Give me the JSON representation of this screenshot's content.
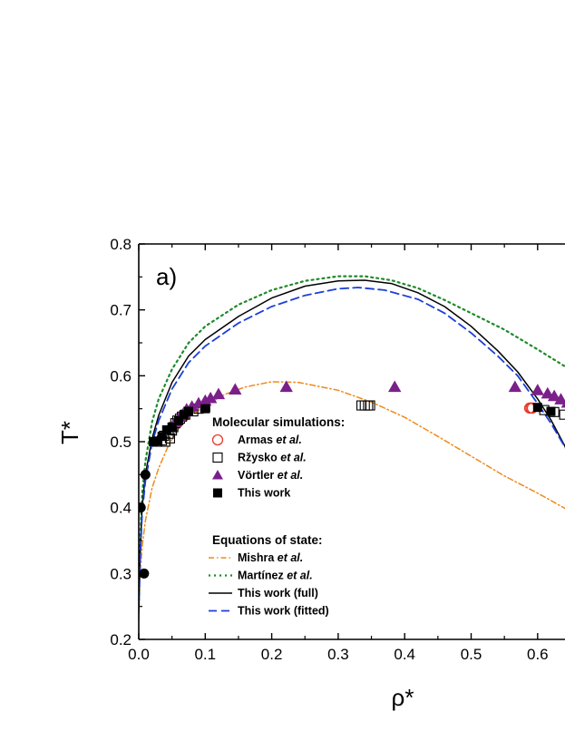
{
  "chart_data": {
    "type": "scatter",
    "panel_label": "a)",
    "xlabel": "ρ*",
    "ylabel": "T*",
    "xlim": [
      0.0,
      0.648
    ],
    "ylim": [
      0.2,
      0.8
    ],
    "xticks": [
      "0.0",
      "0.1",
      "0.2",
      "0.3",
      "0.4",
      "0.5",
      "0.6"
    ],
    "yticks": [
      "0.2",
      "0.3",
      "0.4",
      "0.5",
      "0.6",
      "0.7",
      "0.8"
    ],
    "legend": {
      "placement": "center-left",
      "sim_header": "Molecular simulations:",
      "eos_header": "Equations of state:"
    },
    "series": [
      {
        "name": "Armas et al.",
        "label_plain": "Armas ",
        "label_italic": "et al.",
        "kind": "marker",
        "marker": "open-circle",
        "color": "#e8392a",
        "points": [
          [
            0.588,
            0.551
          ],
          [
            0.59,
            0.551
          ],
          [
            0.592,
            0.551
          ]
        ]
      },
      {
        "name": "Ržysko et al.",
        "label_plain": "Ržysko ",
        "label_italic": "et al.",
        "kind": "marker",
        "marker": "open-square",
        "color": "#000000",
        "points": [
          [
            0.028,
            0.5
          ],
          [
            0.035,
            0.502
          ],
          [
            0.038,
            0.509
          ],
          [
            0.04,
            0.5
          ],
          [
            0.045,
            0.512
          ],
          [
            0.047,
            0.505
          ],
          [
            0.05,
            0.517
          ],
          [
            0.052,
            0.522
          ],
          [
            0.055,
            0.528
          ],
          [
            0.058,
            0.532
          ],
          [
            0.062,
            0.535
          ],
          [
            0.065,
            0.538
          ],
          [
            0.07,
            0.541
          ],
          [
            0.082,
            0.546
          ],
          [
            0.09,
            0.55
          ],
          [
            0.1,
            0.552
          ],
          [
            0.335,
            0.555
          ],
          [
            0.34,
            0.555
          ],
          [
            0.345,
            0.555
          ],
          [
            0.348,
            0.555
          ],
          [
            0.61,
            0.548
          ],
          [
            0.625,
            0.545
          ],
          [
            0.64,
            0.541
          ]
        ]
      },
      {
        "name": "Vörtler et al.",
        "label_plain": "Vörtler ",
        "label_italic": "et al.",
        "kind": "marker",
        "marker": "filled-triangle",
        "color": "#7b1f8a",
        "points": [
          [
            0.055,
            0.53
          ],
          [
            0.062,
            0.538
          ],
          [
            0.068,
            0.544
          ],
          [
            0.072,
            0.549
          ],
          [
            0.08,
            0.553
          ],
          [
            0.09,
            0.558
          ],
          [
            0.1,
            0.562
          ],
          [
            0.108,
            0.566
          ],
          [
            0.12,
            0.572
          ],
          [
            0.145,
            0.579
          ],
          [
            0.222,
            0.583
          ],
          [
            0.385,
            0.583
          ],
          [
            0.566,
            0.583
          ],
          [
            0.6,
            0.578
          ],
          [
            0.615,
            0.573
          ],
          [
            0.625,
            0.569
          ],
          [
            0.635,
            0.564
          ],
          [
            0.645,
            0.559
          ]
        ]
      },
      {
        "name": "This work",
        "label_plain": "This work",
        "label_italic": "",
        "kind": "marker",
        "marker": "filled-square",
        "color": "#000000",
        "points": [
          [
            0.022,
            0.5
          ],
          [
            0.028,
            0.501
          ],
          [
            0.035,
            0.508
          ],
          [
            0.042,
            0.518
          ],
          [
            0.05,
            0.522
          ],
          [
            0.06,
            0.532
          ],
          [
            0.068,
            0.541
          ],
          [
            0.075,
            0.546
          ],
          [
            0.1,
            0.55
          ],
          [
            0.6,
            0.552
          ],
          [
            0.62,
            0.546
          ]
        ]
      },
      {
        "name": "Black circles",
        "kind": "marker",
        "legend": false,
        "marker": "filled-circle",
        "color": "#000000",
        "points": [
          [
            0.003,
            0.4
          ],
          [
            0.01,
            0.45
          ],
          [
            0.008,
            0.3
          ]
        ]
      },
      {
        "name": "Mishra et al.",
        "label_plain": "Mishra ",
        "label_italic": "et al.",
        "kind": "line",
        "style": "dash-dot",
        "color": "#ef8a1c",
        "points": [
          [
            0.0,
            0.23
          ],
          [
            0.002,
            0.3
          ],
          [
            0.005,
            0.34
          ],
          [
            0.01,
            0.38
          ],
          [
            0.02,
            0.43
          ],
          [
            0.03,
            0.46
          ],
          [
            0.045,
            0.495
          ],
          [
            0.06,
            0.52
          ],
          [
            0.08,
            0.54
          ],
          [
            0.1,
            0.555
          ],
          [
            0.13,
            0.572
          ],
          [
            0.16,
            0.583
          ],
          [
            0.2,
            0.591
          ],
          [
            0.24,
            0.59
          ],
          [
            0.3,
            0.578
          ],
          [
            0.35,
            0.56
          ],
          [
            0.4,
            0.537
          ],
          [
            0.45,
            0.508
          ],
          [
            0.5,
            0.478
          ],
          [
            0.55,
            0.448
          ],
          [
            0.6,
            0.422
          ],
          [
            0.648,
            0.395
          ]
        ]
      },
      {
        "name": "Martínez et al.",
        "label_plain": "Martínez ",
        "label_italic": "et al.",
        "kind": "line",
        "style": "dotted",
        "color": "#1f8a2a",
        "points": [
          [
            0.0,
            0.25
          ],
          [
            0.002,
            0.35
          ],
          [
            0.005,
            0.42
          ],
          [
            0.01,
            0.47
          ],
          [
            0.02,
            0.53
          ],
          [
            0.03,
            0.565
          ],
          [
            0.05,
            0.61
          ],
          [
            0.075,
            0.65
          ],
          [
            0.1,
            0.675
          ],
          [
            0.15,
            0.708
          ],
          [
            0.2,
            0.73
          ],
          [
            0.25,
            0.744
          ],
          [
            0.3,
            0.751
          ],
          [
            0.34,
            0.751
          ],
          [
            0.38,
            0.745
          ],
          [
            0.42,
            0.733
          ],
          [
            0.46,
            0.715
          ],
          [
            0.5,
            0.695
          ],
          [
            0.55,
            0.67
          ],
          [
            0.6,
            0.64
          ],
          [
            0.648,
            0.61
          ]
        ]
      },
      {
        "name": "This work (full)",
        "label_plain": "This work (full)",
        "label_italic": "",
        "kind": "line",
        "style": "solid",
        "color": "#000000",
        "points": [
          [
            0.0,
            0.25
          ],
          [
            0.002,
            0.33
          ],
          [
            0.005,
            0.4
          ],
          [
            0.01,
            0.45
          ],
          [
            0.02,
            0.505
          ],
          [
            0.03,
            0.54
          ],
          [
            0.05,
            0.59
          ],
          [
            0.075,
            0.63
          ],
          [
            0.1,
            0.655
          ],
          [
            0.15,
            0.69
          ],
          [
            0.2,
            0.718
          ],
          [
            0.25,
            0.736
          ],
          [
            0.3,
            0.744
          ],
          [
            0.34,
            0.745
          ],
          [
            0.38,
            0.74
          ],
          [
            0.42,
            0.726
          ],
          [
            0.46,
            0.705
          ],
          [
            0.5,
            0.675
          ],
          [
            0.54,
            0.638
          ],
          [
            0.57,
            0.606
          ],
          [
            0.6,
            0.565
          ],
          [
            0.62,
            0.533
          ],
          [
            0.648,
            0.48
          ]
        ]
      },
      {
        "name": "This work (fitted)",
        "label_plain": "This work (fitted)",
        "label_italic": "",
        "kind": "line",
        "style": "dashed",
        "color": "#1c3fd6",
        "points": [
          [
            0.0,
            0.24
          ],
          [
            0.002,
            0.32
          ],
          [
            0.005,
            0.39
          ],
          [
            0.01,
            0.44
          ],
          [
            0.02,
            0.498
          ],
          [
            0.03,
            0.532
          ],
          [
            0.05,
            0.58
          ],
          [
            0.075,
            0.62
          ],
          [
            0.1,
            0.645
          ],
          [
            0.15,
            0.68
          ],
          [
            0.2,
            0.705
          ],
          [
            0.25,
            0.722
          ],
          [
            0.3,
            0.732
          ],
          [
            0.33,
            0.734
          ],
          [
            0.37,
            0.73
          ],
          [
            0.42,
            0.716
          ],
          [
            0.46,
            0.695
          ],
          [
            0.5,
            0.665
          ],
          [
            0.54,
            0.63
          ],
          [
            0.57,
            0.6
          ],
          [
            0.6,
            0.558
          ],
          [
            0.62,
            0.528
          ],
          [
            0.648,
            0.48
          ]
        ]
      }
    ]
  }
}
